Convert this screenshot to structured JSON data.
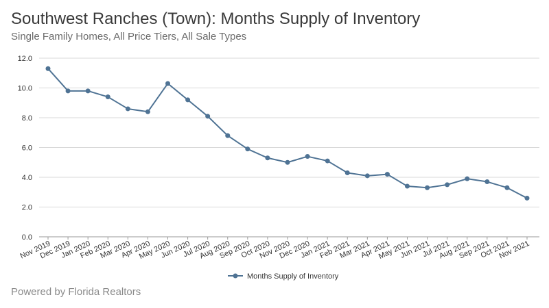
{
  "header": {
    "title": "Southwest Ranches (Town): Months Supply of Inventory",
    "subtitle": "Single Family Homes, All Price Tiers, All Sale Types"
  },
  "footer": {
    "text": "Powered by Florida Realtors"
  },
  "colors": {
    "series": "#4f7394",
    "grid": "#d9d9d9",
    "axis": "#9a9a9a"
  },
  "chart_data": {
    "type": "line",
    "title": "Southwest Ranches (Town): Months Supply of Inventory",
    "subtitle": "Single Family Homes, All Price Tiers, All Sale Types",
    "xlabel": "",
    "ylabel": "",
    "ylim": [
      0,
      12
    ],
    "yticks": [
      "0.0",
      "2.0",
      "4.0",
      "6.0",
      "8.0",
      "10.0",
      "12.0"
    ],
    "grid": true,
    "legend_position": "bottom",
    "categories": [
      "Nov 2019",
      "Dec 2019",
      "Jan 2020",
      "Feb 2020",
      "Mar 2020",
      "Apr 2020",
      "May 2020",
      "Jun 2020",
      "Jul 2020",
      "Aug 2020",
      "Sep 2020",
      "Oct 2020",
      "Nov 2020",
      "Dec 2020",
      "Jan 2021",
      "Feb 2021",
      "Mar 2021",
      "Apr 2021",
      "May 2021",
      "Jun 2021",
      "Jul 2021",
      "Aug 2021",
      "Sep 2021",
      "Oct 2021",
      "Nov 2021"
    ],
    "series": [
      {
        "name": "Months Supply of Inventory",
        "values": [
          11.3,
          9.8,
          9.8,
          9.4,
          8.6,
          8.4,
          10.3,
          9.2,
          8.1,
          6.8,
          5.9,
          5.3,
          5.0,
          5.4,
          5.1,
          4.3,
          4.1,
          4.2,
          3.4,
          3.3,
          3.5,
          3.9,
          3.7,
          3.3,
          2.6
        ]
      }
    ]
  }
}
